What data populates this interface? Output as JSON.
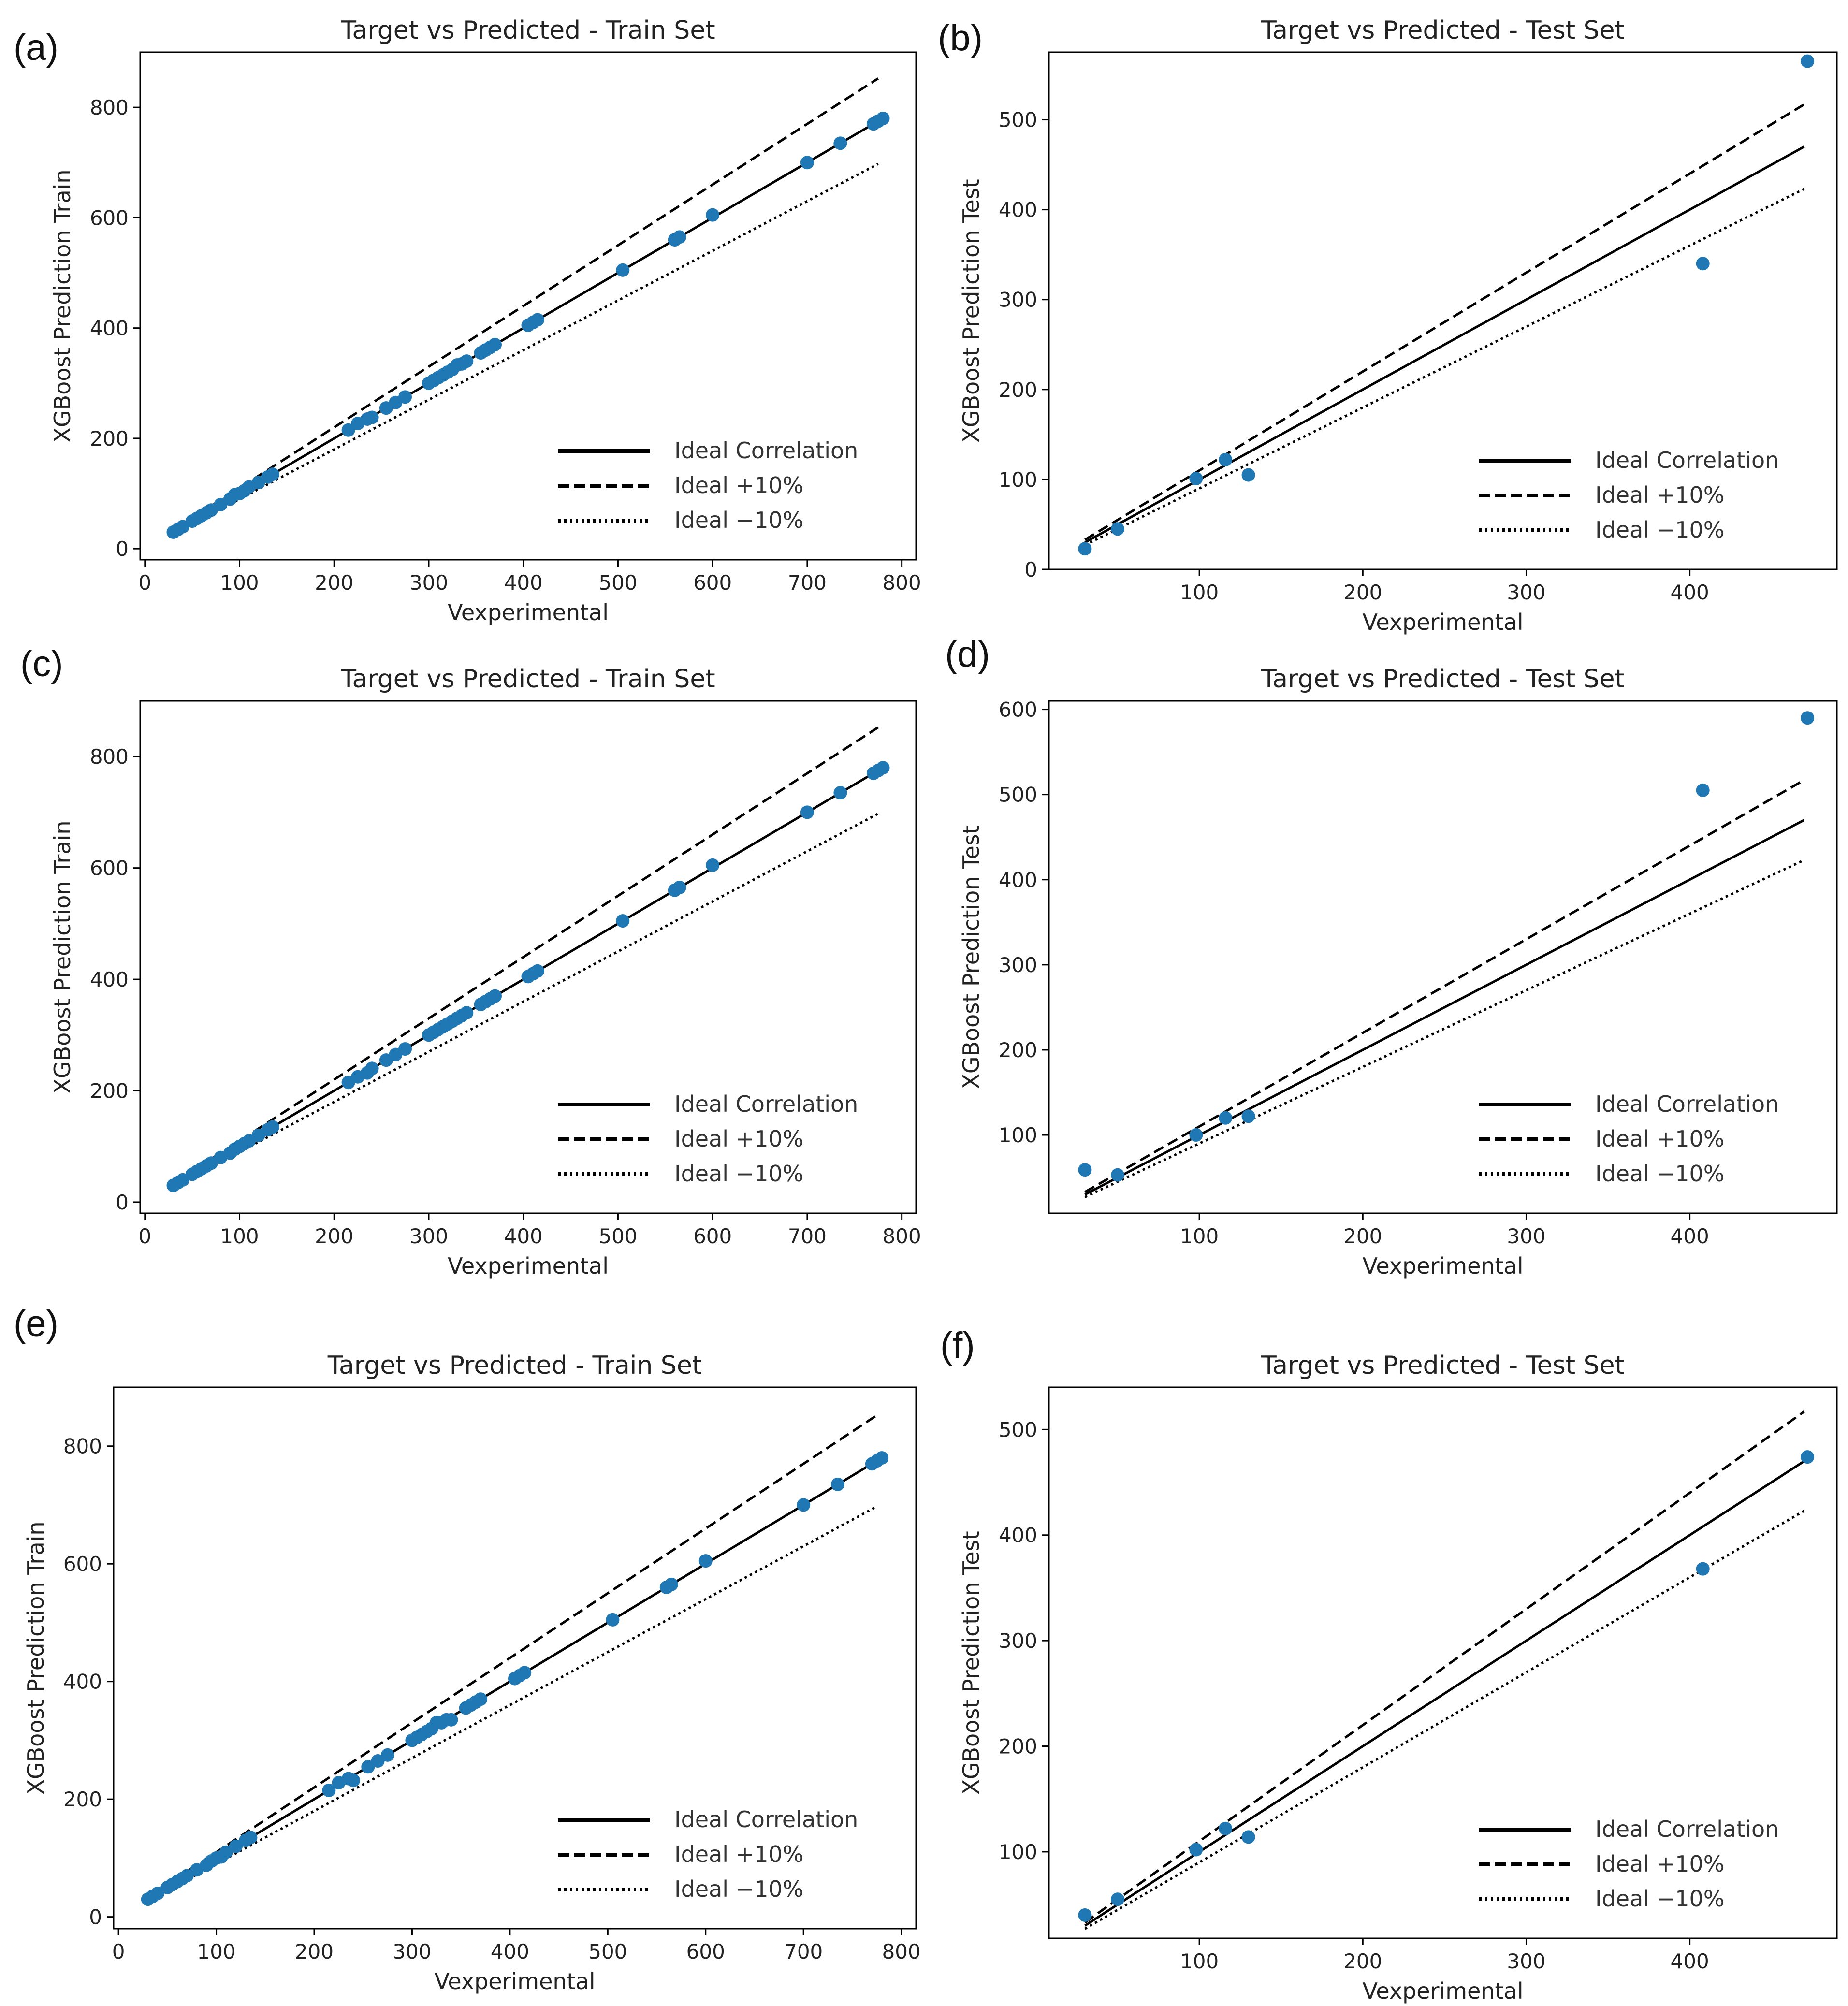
{
  "figure": {
    "panel_labels": [
      "(a)",
      "(b)",
      "(c)",
      "(d)",
      "(e)",
      "(f)"
    ]
  },
  "colors": {
    "points": "#1f77b4",
    "lines": "#000000",
    "axes": "#000000",
    "text": "#222222"
  },
  "chart_data": [
    {
      "panel": "(a)",
      "type": "scatter",
      "title": "Target vs Predicted - Train Set",
      "xlabel": "Vexperimental",
      "ylabel": "XGBoost Prediction Train",
      "xlim": [
        -5,
        815
      ],
      "ylim": [
        -20,
        900
      ],
      "xticks": [
        0,
        100,
        200,
        300,
        400,
        500,
        600,
        700,
        800
      ],
      "yticks": [
        0,
        200,
        400,
        600,
        800
      ],
      "line_range": [
        30,
        775
      ],
      "legend": {
        "entries": [
          "Ideal Correlation",
          "Ideal +10%",
          "Ideal −10%"
        ],
        "position": "lower-right"
      },
      "series": [
        {
          "name": "Train",
          "x": [
            30,
            35,
            40,
            50,
            55,
            60,
            65,
            70,
            80,
            90,
            95,
            100,
            105,
            110,
            120,
            130,
            135,
            215,
            225,
            235,
            240,
            255,
            265,
            275,
            300,
            305,
            310,
            315,
            320,
            325,
            330,
            335,
            340,
            355,
            360,
            365,
            370,
            405,
            410,
            415,
            505,
            560,
            565,
            600,
            700,
            735,
            770,
            775,
            780
          ],
          "y": [
            30,
            35,
            40,
            50,
            55,
            60,
            65,
            70,
            80,
            90,
            98,
            100,
            105,
            112,
            120,
            130,
            135,
            215,
            227,
            235,
            238,
            255,
            265,
            275,
            300,
            305,
            310,
            315,
            320,
            325,
            333,
            335,
            340,
            355,
            360,
            365,
            370,
            405,
            410,
            415,
            505,
            560,
            565,
            605,
            700,
            735,
            770,
            775,
            780
          ]
        }
      ]
    },
    {
      "panel": "(b)",
      "type": "scatter",
      "title": "Target vs Predicted - Test Set",
      "xlabel": "Vexperimental",
      "ylabel": "XGBoost Prediction Test",
      "xlim": [
        8,
        490
      ],
      "ylim": [
        0,
        575
      ],
      "xticks": [
        100,
        200,
        300,
        400
      ],
      "yticks": [
        0,
        100,
        200,
        300,
        400,
        500
      ],
      "line_range": [
        30,
        470
      ],
      "legend": {
        "entries": [
          "Ideal Correlation",
          "Ideal +10%",
          "Ideal −10%"
        ],
        "position": "lower-right"
      },
      "series": [
        {
          "name": "Test",
          "x": [
            30,
            50,
            98,
            116,
            130,
            408,
            472
          ],
          "y": [
            23,
            45,
            101,
            122,
            105,
            340,
            565
          ]
        }
      ]
    },
    {
      "panel": "(c)",
      "type": "scatter",
      "title": "Target vs Predicted - Train Set",
      "xlabel": "Vexperimental",
      "ylabel": "XGBoost Prediction Train",
      "xlim": [
        -5,
        815
      ],
      "ylim": [
        -20,
        900
      ],
      "xticks": [
        0,
        100,
        200,
        300,
        400,
        500,
        600,
        700,
        800
      ],
      "yticks": [
        0,
        200,
        400,
        600,
        800
      ],
      "line_range": [
        30,
        775
      ],
      "legend": {
        "entries": [
          "Ideal Correlation",
          "Ideal +10%",
          "Ideal −10%"
        ],
        "position": "lower-right"
      },
      "series": [
        {
          "name": "Train",
          "x": [
            30,
            35,
            40,
            50,
            55,
            60,
            65,
            70,
            80,
            90,
            95,
            100,
            105,
            110,
            120,
            130,
            135,
            215,
            225,
            235,
            240,
            255,
            265,
            275,
            300,
            305,
            310,
            315,
            320,
            325,
            330,
            335,
            340,
            355,
            360,
            365,
            370,
            405,
            410,
            415,
            505,
            560,
            565,
            600,
            700,
            735,
            770,
            775,
            780
          ],
          "y": [
            30,
            35,
            40,
            50,
            55,
            60,
            65,
            70,
            80,
            88,
            95,
            100,
            105,
            110,
            120,
            130,
            135,
            215,
            225,
            232,
            240,
            255,
            265,
            275,
            300,
            305,
            310,
            315,
            320,
            325,
            330,
            335,
            340,
            355,
            360,
            365,
            370,
            405,
            410,
            415,
            505,
            560,
            565,
            605,
            700,
            735,
            770,
            775,
            780
          ]
        }
      ]
    },
    {
      "panel": "(d)",
      "type": "scatter",
      "title": "Target vs Predicted - Test Set",
      "xlabel": "Vexperimental",
      "ylabel": "XGBoost Prediction Test",
      "xlim": [
        8,
        490
      ],
      "ylim": [
        8,
        610
      ],
      "xticks": [
        100,
        200,
        300,
        400
      ],
      "yticks": [
        100,
        200,
        300,
        400,
        500,
        600
      ],
      "line_range": [
        30,
        470
      ],
      "legend": {
        "entries": [
          "Ideal Correlation",
          "Ideal +10%",
          "Ideal −10%"
        ],
        "position": "lower-right"
      },
      "series": [
        {
          "name": "Test",
          "x": [
            30,
            50,
            98,
            116,
            130,
            408,
            472
          ],
          "y": [
            59,
            53,
            100,
            120,
            122,
            505,
            590
          ]
        }
      ]
    },
    {
      "panel": "(e)",
      "type": "scatter",
      "title": "Target vs Predicted - Train Set",
      "xlabel": "Vexperimental",
      "ylabel": "XGBoost Prediction Train",
      "xlim": [
        -5,
        815
      ],
      "ylim": [
        -20,
        900
      ],
      "xticks": [
        0,
        100,
        200,
        300,
        400,
        500,
        600,
        700,
        800
      ],
      "yticks": [
        0,
        200,
        400,
        600,
        800
      ],
      "line_range": [
        30,
        775
      ],
      "legend": {
        "entries": [
          "Ideal Correlation",
          "Ideal +10%",
          "Ideal −10%"
        ],
        "position": "lower-right"
      },
      "series": [
        {
          "name": "Train",
          "x": [
            30,
            35,
            40,
            50,
            55,
            60,
            65,
            70,
            80,
            90,
            95,
            100,
            105,
            110,
            120,
            130,
            135,
            215,
            225,
            235,
            240,
            255,
            265,
            275,
            300,
            305,
            310,
            315,
            320,
            325,
            330,
            335,
            340,
            355,
            360,
            365,
            370,
            405,
            410,
            415,
            505,
            560,
            565,
            600,
            700,
            735,
            770,
            775,
            780
          ],
          "y": [
            30,
            35,
            40,
            50,
            55,
            60,
            65,
            70,
            80,
            88,
            95,
            100,
            102,
            110,
            120,
            130,
            135,
            215,
            228,
            235,
            232,
            255,
            265,
            275,
            300,
            305,
            310,
            315,
            320,
            330,
            330,
            335,
            335,
            355,
            360,
            365,
            370,
            405,
            410,
            415,
            505,
            560,
            565,
            605,
            700,
            735,
            770,
            775,
            780
          ]
        }
      ]
    },
    {
      "panel": "(f)",
      "type": "scatter",
      "title": "Target vs Predicted - Test Set",
      "xlabel": "Vexperimental",
      "ylabel": "XGBoost Prediction Test",
      "xlim": [
        8,
        490
      ],
      "ylim": [
        18,
        540
      ],
      "xticks": [
        100,
        200,
        300,
        400
      ],
      "yticks": [
        100,
        200,
        300,
        400,
        500
      ],
      "line_range": [
        30,
        470
      ],
      "legend": {
        "entries": [
          "Ideal Correlation",
          "Ideal +10%",
          "Ideal −10%"
        ],
        "position": "lower-right"
      },
      "series": [
        {
          "name": "Test",
          "x": [
            30,
            50,
            98,
            116,
            130,
            408,
            472
          ],
          "y": [
            40,
            55,
            102,
            122,
            114,
            368,
            474
          ]
        }
      ]
    }
  ]
}
